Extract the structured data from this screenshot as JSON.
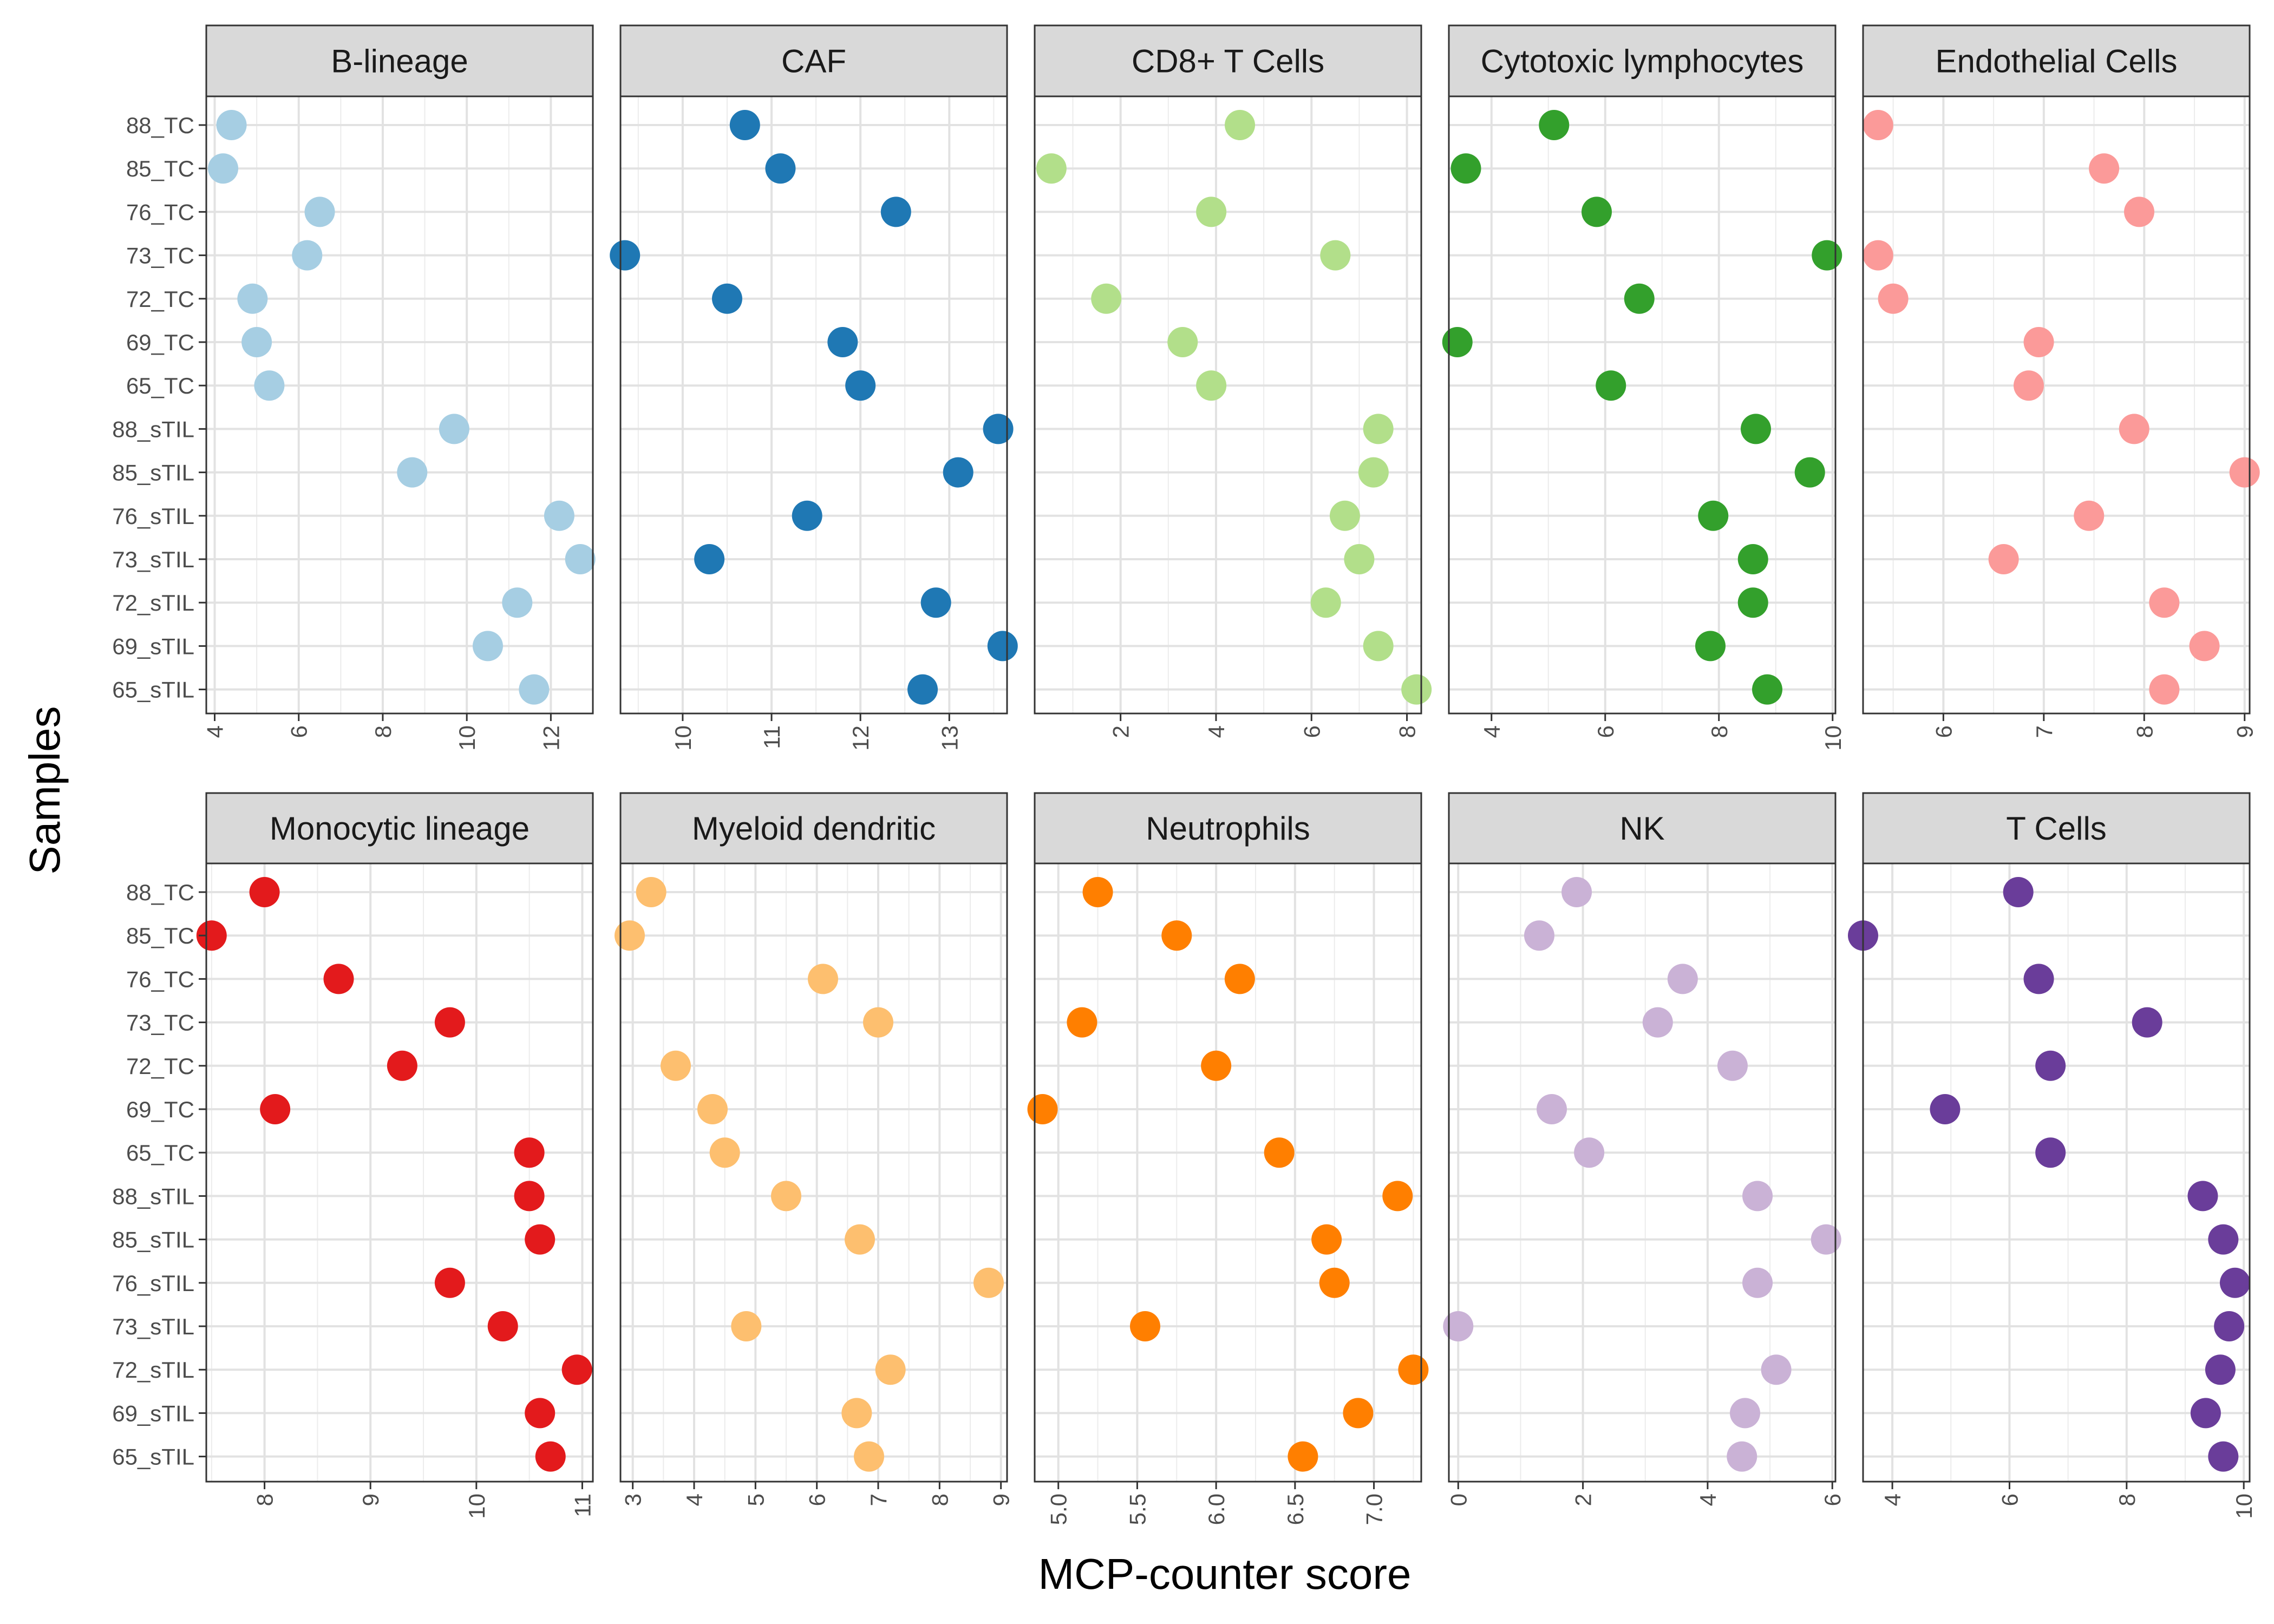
{
  "chart_data": {
    "type": "scatter",
    "xlabel": "MCP-counter score",
    "ylabel": "Samples",
    "grid": true,
    "samples": [
      "88_TC",
      "85_TC",
      "76_TC",
      "73_TC",
      "72_TC",
      "69_TC",
      "65_TC",
      "88_sTIL",
      "85_sTIL",
      "76_sTIL",
      "73_sTIL",
      "72_sTIL",
      "69_sTIL",
      "65_sTIL"
    ],
    "panels": [
      {
        "title": "B-lineage",
        "color": "#a6cee3",
        "xlim": [
          3.8,
          13.0
        ],
        "ticks": [
          4,
          6,
          8,
          10,
          12
        ],
        "values": [
          4.4,
          4.2,
          6.5,
          6.2,
          4.9,
          5.0,
          5.3,
          9.7,
          8.7,
          12.2,
          12.7,
          11.2,
          10.5,
          11.6
        ]
      },
      {
        "title": "CAF",
        "color": "#1f78b4",
        "xlim": [
          9.3,
          13.65
        ],
        "ticks": [
          10,
          11,
          12,
          13
        ],
        "values": [
          10.7,
          11.1,
          12.4,
          9.35,
          10.5,
          11.8,
          12.0,
          13.55,
          13.1,
          11.4,
          10.3,
          12.85,
          13.6,
          12.7
        ]
      },
      {
        "title": "CD8+ T Cells",
        "color": "#b2df8a",
        "xlim": [
          0.2,
          8.3
        ],
        "ticks": [
          2,
          4,
          6,
          8
        ],
        "values": [
          4.5,
          0.55,
          3.9,
          6.5,
          1.7,
          3.3,
          3.9,
          7.4,
          7.3,
          6.7,
          7.0,
          6.3,
          7.4,
          8.2
        ]
      },
      {
        "title": "Cytotoxic lymphocytes",
        "color": "#33a02c",
        "xlim": [
          3.25,
          10.05
        ],
        "ticks": [
          4,
          6,
          8,
          10
        ],
        "values": [
          5.1,
          3.55,
          5.85,
          9.9,
          6.6,
          3.4,
          6.1,
          8.65,
          9.6,
          7.9,
          8.6,
          8.6,
          7.85,
          8.85
        ]
      },
      {
        "title": "Endothelial Cells",
        "color": "#fb9a99",
        "xlim": [
          5.2,
          9.05
        ],
        "ticks": [
          6,
          7,
          8,
          9
        ],
        "values": [
          5.35,
          7.6,
          7.95,
          5.35,
          5.5,
          6.95,
          6.85,
          7.9,
          9.0,
          7.45,
          6.6,
          8.2,
          8.6,
          8.2
        ]
      },
      {
        "title": "Monocytic lineage",
        "color": "#e31a1c",
        "xlim": [
          7.45,
          11.1
        ],
        "ticks": [
          8,
          9,
          10,
          11
        ],
        "values": [
          8.0,
          7.5,
          8.7,
          9.75,
          9.3,
          8.1,
          10.5,
          10.5,
          10.6,
          9.75,
          10.25,
          10.95,
          10.6,
          10.7
        ]
      },
      {
        "title": "Myeloid dendritic",
        "color": "#fdbf6f",
        "xlim": [
          2.8,
          9.1
        ],
        "ticks": [
          3,
          4,
          5,
          6,
          7,
          8,
          9
        ],
        "values": [
          3.3,
          2.95,
          6.1,
          7.0,
          3.7,
          4.3,
          4.5,
          5.5,
          6.7,
          8.8,
          4.85,
          7.2,
          6.65,
          6.85
        ]
      },
      {
        "title": "Neutrophils",
        "color": "#ff7f00",
        "xlim": [
          4.85,
          7.3
        ],
        "ticks": [
          5.0,
          5.5,
          6.0,
          6.5,
          7.0
        ],
        "values": [
          5.25,
          5.75,
          6.15,
          5.15,
          6.0,
          4.9,
          6.4,
          7.15,
          6.7,
          6.75,
          5.55,
          7.25,
          6.9,
          6.55
        ]
      },
      {
        "title": "NK",
        "color": "#cab2d6",
        "xlim": [
          -0.15,
          6.05
        ],
        "ticks": [
          0,
          2,
          4,
          6
        ],
        "values": [
          1.9,
          1.3,
          3.6,
          3.2,
          4.4,
          1.5,
          2.1,
          4.8,
          5.9,
          4.8,
          0.0,
          5.1,
          4.6,
          4.55
        ]
      },
      {
        "title": "T Cells",
        "color": "#6a3d9a",
        "xlim": [
          3.5,
          10.1
        ],
        "ticks": [
          4,
          6,
          8,
          10
        ],
        "values": [
          6.15,
          3.5,
          6.5,
          8.35,
          6.7,
          4.9,
          6.7,
          9.3,
          9.65,
          9.85,
          9.75,
          9.6,
          9.35,
          9.65
        ]
      }
    ]
  }
}
